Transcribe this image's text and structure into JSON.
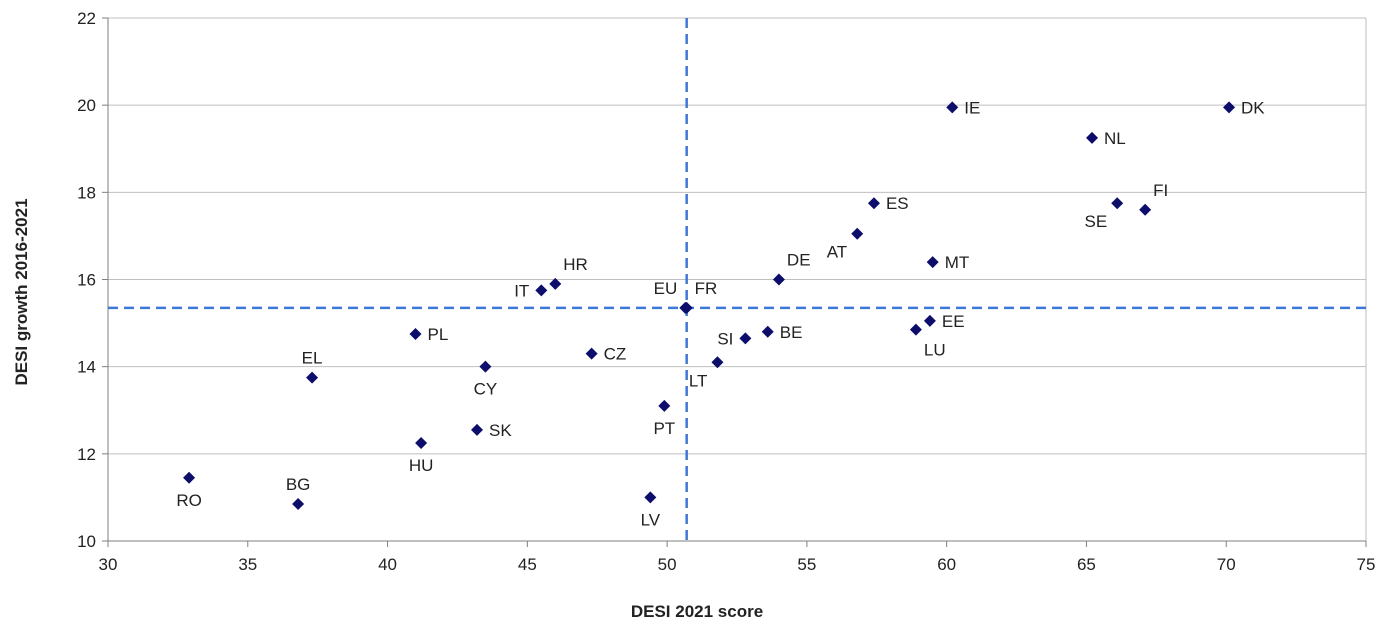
{
  "chart_data": {
    "type": "scatter",
    "xlabel": "DESI 2021 score",
    "ylabel": "DESI growth 2016-2021",
    "xlim": [
      30,
      75
    ],
    "ylim": [
      10,
      22
    ],
    "xticks": [
      30,
      35,
      40,
      45,
      50,
      55,
      60,
      65,
      70,
      75
    ],
    "yticks": [
      10,
      12,
      14,
      16,
      18,
      20,
      22
    ],
    "grid": "horizontal",
    "marker": "diamond",
    "colors": {
      "marker": "#0d0d6b",
      "reference_line": "#3f79d8",
      "grid": "#bfbfbf",
      "axis": "#7f7f7f"
    },
    "reference_lines": {
      "x": 50.7,
      "y": 15.35
    },
    "points": [
      {
        "label": "DK",
        "x": 70.1,
        "y": 19.95,
        "label_side": "right"
      },
      {
        "label": "IE",
        "x": 60.2,
        "y": 19.95,
        "label_side": "right"
      },
      {
        "label": "NL",
        "x": 65.2,
        "y": 19.25,
        "label_side": "right"
      },
      {
        "label": "FI",
        "x": 67.1,
        "y": 17.6,
        "label_side": "upper-right"
      },
      {
        "label": "SE",
        "x": 66.1,
        "y": 17.75,
        "label_side": "lower-left"
      },
      {
        "label": "ES",
        "x": 57.4,
        "y": 17.75,
        "label_side": "right"
      },
      {
        "label": "AT",
        "x": 56.8,
        "y": 17.05,
        "label_side": "lower-left"
      },
      {
        "label": "MT",
        "x": 59.5,
        "y": 16.4,
        "label_side": "right"
      },
      {
        "label": "DE",
        "x": 54.0,
        "y": 16.0,
        "label_side": "upper-right"
      },
      {
        "label": "HR",
        "x": 46.0,
        "y": 15.9,
        "label_side": "upper-right"
      },
      {
        "label": "IT",
        "x": 45.5,
        "y": 15.75,
        "label_side": "left"
      },
      {
        "label": "EU",
        "x": 50.65,
        "y": 15.35,
        "label_side": "upper-left"
      },
      {
        "label": "FR",
        "x": 50.7,
        "y": 15.35,
        "label_side": "upper-right"
      },
      {
        "label": "EE",
        "x": 59.4,
        "y": 15.05,
        "label_side": "right"
      },
      {
        "label": "LU",
        "x": 58.9,
        "y": 14.85,
        "label_side": "lower-right"
      },
      {
        "label": "BE",
        "x": 53.6,
        "y": 14.8,
        "label_side": "right"
      },
      {
        "label": "SI",
        "x": 52.8,
        "y": 14.65,
        "label_side": "left"
      },
      {
        "label": "PL",
        "x": 41.0,
        "y": 14.75,
        "label_side": "right"
      },
      {
        "label": "CZ",
        "x": 47.3,
        "y": 14.3,
        "label_side": "right"
      },
      {
        "label": "LT",
        "x": 51.8,
        "y": 14.1,
        "label_side": "lower-left"
      },
      {
        "label": "CY",
        "x": 43.5,
        "y": 14.0,
        "label_side": "below"
      },
      {
        "label": "EL",
        "x": 37.3,
        "y": 13.75,
        "label_side": "above"
      },
      {
        "label": "PT",
        "x": 49.9,
        "y": 13.1,
        "label_side": "below"
      },
      {
        "label": "SK",
        "x": 43.2,
        "y": 12.55,
        "label_side": "right"
      },
      {
        "label": "HU",
        "x": 41.2,
        "y": 12.25,
        "label_side": "below"
      },
      {
        "label": "RO",
        "x": 32.9,
        "y": 11.45,
        "label_side": "below"
      },
      {
        "label": "BG",
        "x": 36.8,
        "y": 10.85,
        "label_side": "above"
      },
      {
        "label": "LV",
        "x": 49.4,
        "y": 11.0,
        "label_side": "below"
      }
    ]
  }
}
